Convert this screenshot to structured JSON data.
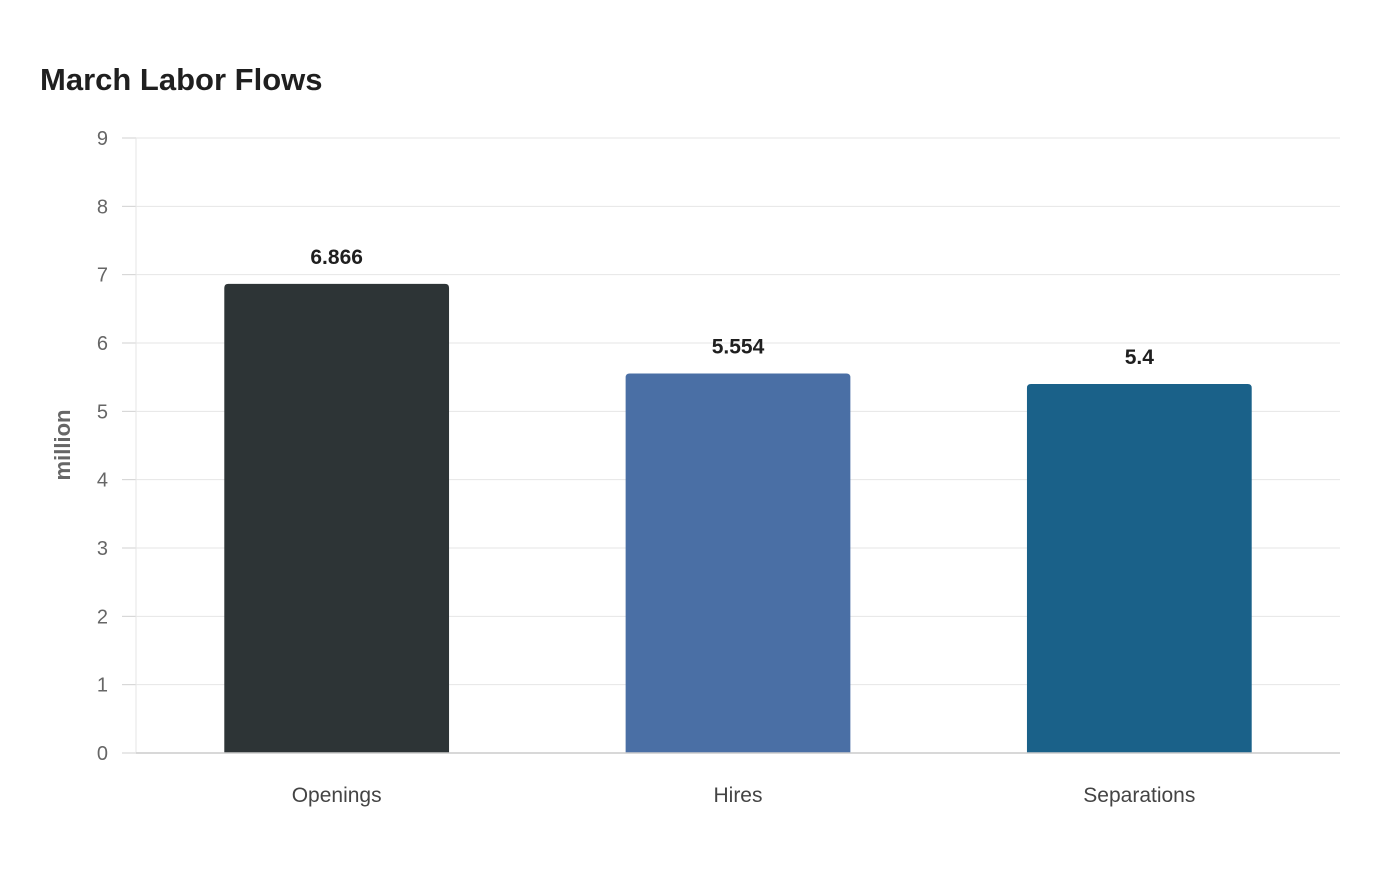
{
  "chart_data": {
    "type": "bar",
    "title": "March Labor Flows",
    "xlabel": "",
    "ylabel": "million",
    "categories": [
      "Openings",
      "Hires",
      "Separations"
    ],
    "values": [
      6.866,
      5.554,
      5.4
    ],
    "value_labels": [
      "6.866",
      "5.554",
      "5.4"
    ],
    "colors": [
      "#2d3436",
      "#4a6fa5",
      "#1a6189"
    ],
    "ylim": [
      0,
      9
    ],
    "yticks": [
      0,
      1,
      2,
      3,
      4,
      5,
      6,
      7,
      8,
      9
    ],
    "grid": true,
    "legend": "none"
  }
}
